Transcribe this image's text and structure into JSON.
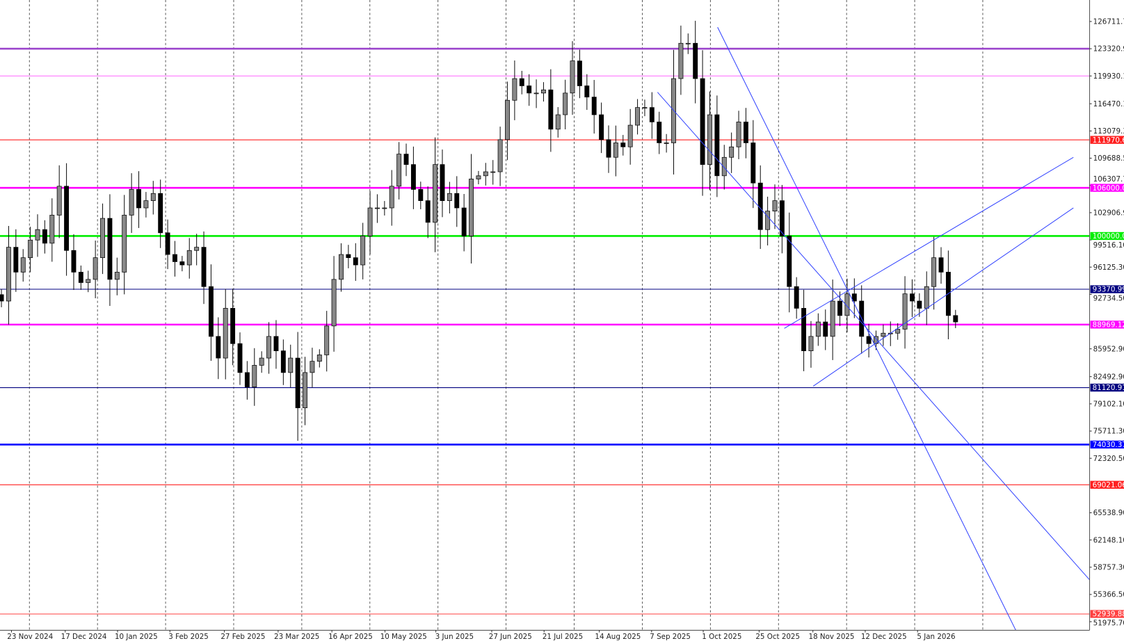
{
  "chart_data": {
    "type": "candlestick",
    "first_date": "2024-11-19",
    "last_date": "2026-01-22",
    "ylim": [
      50900,
      127500
    ],
    "grid": "vertical dashed",
    "closes": [
      91900,
      98600,
      95500,
      97300,
      99500,
      100800,
      99100,
      102600,
      106200,
      98200,
      95500,
      94200,
      94600,
      97300,
      102200,
      94600,
      95500,
      102600,
      105800,
      103500,
      104400,
      105300,
      100400,
      97700,
      96800,
      96400,
      98200,
      98600,
      93700,
      87500,
      84800,
      91000,
      86600,
      83000,
      81200,
      83900,
      84800,
      87500,
      85700,
      83000,
      84800,
      78600,
      83000,
      84400,
      85200,
      88800,
      94600,
      97700,
      97300,
      96400,
      100000,
      103500,
      103500,
      103500,
      106200,
      110200,
      108900,
      105800,
      104400,
      101700,
      108900,
      104400,
      105300,
      103500,
      100000,
      107100,
      107500,
      108000,
      108000,
      112000,
      116900,
      119600,
      118700,
      117800,
      117800,
      118200,
      113300,
      115100,
      117800,
      121800,
      118700,
      117300,
      115100,
      112000,
      109800,
      111600,
      111100,
      113800,
      116000,
      116000,
      114200,
      111600,
      111600,
      119600,
      124000,
      124000,
      119600,
      108900,
      115100,
      107500,
      109800,
      111100,
      114200,
      111600,
      106600,
      100800,
      103100,
      104400,
      100000,
      93700,
      91000,
      85700,
      87500,
      89300,
      87500,
      91900,
      90100,
      92800,
      91900,
      87500,
      86600,
      87500,
      87900,
      87900,
      88400,
      92800,
      91900,
      91000,
      93700,
      97300,
      95500,
      90100,
      89300
    ],
    "extremes": {
      "high": 126200,
      "low": 74500
    },
    "y_tick_labels": [
      "126711.70",
      "123320.90",
      "119930.10",
      "116470.10",
      "113079.30",
      "109688.50",
      "106307.70",
      "102906.90",
      "99516.10",
      "96125.30",
      "92734.50",
      "85952.90",
      "82492.90",
      "79102.10",
      "75711.30",
      "72320.50",
      "65538.90",
      "62148.10",
      "58757.30",
      "55366.50",
      "51975.70"
    ],
    "x_tick_labels": [
      "23 Nov 2024",
      "17 Dec 2024",
      "10 Jan 2025",
      "3 Feb 2025",
      "27 Feb 2025",
      "23 Mar 2025",
      "16 Apr 2025",
      "10 May 2025",
      "3 Jun 2025",
      "27 Jun 2025",
      "21 Jul 2025",
      "14 Aug 2025",
      "7 Sep 2025",
      "1 Oct 2025",
      "25 Oct 2025",
      "18 Nov 2025",
      "12 Dec 2025",
      "5 Jan 2026"
    ],
    "horizontal_levels": [
      {
        "value": 123320.9,
        "label": "",
        "color": "#9b44cc",
        "thick": true
      },
      {
        "value": 119930.1,
        "label": "",
        "color": "#ff66ff",
        "thick": false
      },
      {
        "value": 111970.68,
        "label": "111970.68",
        "color": "#ff2020",
        "thick": false
      },
      {
        "value": 106000.0,
        "label": "106000.00",
        "color": "#ff00ff",
        "thick": true
      },
      {
        "value": 100000.0,
        "label": "100000.00",
        "color": "#00ee00",
        "thick": true
      },
      {
        "value": 93370.99,
        "label": "93370.99",
        "color": "#000080",
        "thick": false
      },
      {
        "value": 88969.12,
        "label": "88969.12",
        "color": "#ff00ff",
        "thick": true
      },
      {
        "value": 81120.91,
        "label": "81120.91",
        "color": "#000080",
        "thick": false
      },
      {
        "value": 74030.37,
        "label": "74030.37",
        "color": "#0000ff",
        "thick": true
      },
      {
        "value": 69021.06,
        "label": "69021.06",
        "color": "#ff2020",
        "thick": false
      },
      {
        "value": 52939.88,
        "label": "52939.88",
        "color": "#ff4040",
        "thick": false
      }
    ],
    "trendlines_color": "#3344ff",
    "trendlines": [
      {
        "name": "descending-channel-upper",
        "from": [
          "2025-10-07",
          126000
        ],
        "to": [
          "2026-02-19",
          50400
        ]
      },
      {
        "name": "descending-channel-lower",
        "from": [
          "2025-09-10",
          117900
        ],
        "to": [
          "2026-04-14",
          50400
        ]
      },
      {
        "name": "ascending-channel-upper",
        "from": [
          "2025-11-06",
          88500
        ],
        "to": [
          "2026-03-16",
          109800
        ]
      },
      {
        "name": "ascending-channel-lower",
        "from": [
          "2025-11-19",
          81300
        ],
        "to": [
          "2026-03-16",
          103500
        ]
      }
    ]
  }
}
